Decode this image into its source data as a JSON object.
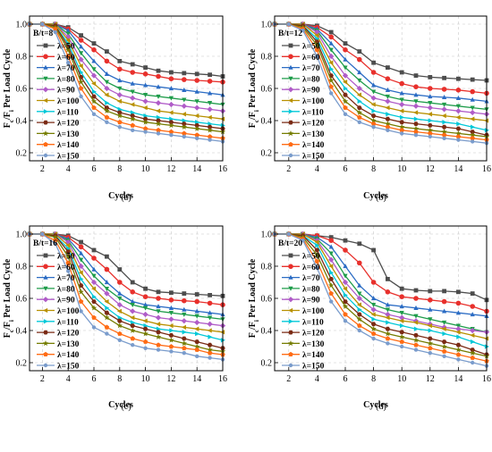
{
  "figure": {
    "series_labels": [
      "λ=50",
      "λ=60",
      "λ=70",
      "λ=80",
      "λ=90",
      "λ=100",
      "λ=110",
      "λ=120",
      "λ=130",
      "λ=140",
      "λ=150"
    ],
    "colors": [
      "#4d4d4d",
      "#e8302c",
      "#2b6cc4",
      "#1e9c4a",
      "#b05cc8",
      "#b89000",
      "#00c8d8",
      "#7a2a14",
      "#747c00",
      "#ff6b14",
      "#7a9ccc"
    ],
    "markers": [
      "square",
      "circle",
      "triangle-up",
      "triangle-down",
      "diamond",
      "triangle-left",
      "triangle-right",
      "hexagon",
      "star",
      "pentagon",
      "circle-small"
    ]
  },
  "chart_data": [
    {
      "type": "line",
      "panel_label": "(a)",
      "box_label": "B/t=8",
      "xlabel": "Cycles",
      "ylabel": "F_c/F_i Per Load Cycle",
      "xlim": [
        1,
        16
      ],
      "ylim": [
        0.15,
        1.05
      ],
      "xticks": [
        2,
        4,
        6,
        8,
        10,
        12,
        14,
        16
      ],
      "yticks": [
        0.2,
        0.4,
        0.6,
        0.8,
        1.0
      ],
      "x": [
        1,
        2,
        3,
        4,
        5,
        6,
        7,
        8,
        9,
        10,
        11,
        12,
        13,
        14,
        15,
        16
      ],
      "series": [
        {
          "name": "λ=50",
          "values": [
            1,
            1,
            1,
            0.98,
            0.93,
            0.88,
            0.83,
            0.77,
            0.75,
            0.73,
            0.71,
            0.7,
            0.695,
            0.69,
            0.685,
            0.675
          ]
        },
        {
          "name": "λ=60",
          "values": [
            1,
            1,
            1,
            0.97,
            0.9,
            0.84,
            0.77,
            0.72,
            0.7,
            0.69,
            0.675,
            0.66,
            0.655,
            0.65,
            0.645,
            0.64
          ]
        },
        {
          "name": "λ=70",
          "values": [
            1,
            1,
            1,
            0.96,
            0.86,
            0.77,
            0.69,
            0.65,
            0.63,
            0.62,
            0.61,
            0.6,
            0.59,
            0.58,
            0.57,
            0.56
          ]
        },
        {
          "name": "λ=80",
          "values": [
            1,
            1,
            1,
            0.94,
            0.82,
            0.72,
            0.64,
            0.6,
            0.58,
            0.56,
            0.55,
            0.54,
            0.53,
            0.52,
            0.51,
            0.5
          ]
        },
        {
          "name": "λ=90",
          "values": [
            1,
            1,
            1,
            0.92,
            0.78,
            0.68,
            0.6,
            0.56,
            0.54,
            0.52,
            0.51,
            0.5,
            0.49,
            0.48,
            0.47,
            0.46
          ]
        },
        {
          "name": "λ=100",
          "values": [
            1,
            1,
            1,
            0.9,
            0.74,
            0.63,
            0.56,
            0.52,
            0.5,
            0.48,
            0.46,
            0.45,
            0.44,
            0.43,
            0.42,
            0.41
          ]
        },
        {
          "name": "λ=110",
          "values": [
            1,
            1,
            0.99,
            0.88,
            0.7,
            0.58,
            0.51,
            0.47,
            0.45,
            0.43,
            0.42,
            0.41,
            0.4,
            0.39,
            0.38,
            0.37
          ]
        },
        {
          "name": "λ=120",
          "values": [
            1,
            1,
            0.99,
            0.86,
            0.67,
            0.55,
            0.48,
            0.45,
            0.43,
            0.41,
            0.4,
            0.39,
            0.38,
            0.37,
            0.36,
            0.35
          ]
        },
        {
          "name": "λ=130",
          "values": [
            1,
            1,
            0.98,
            0.84,
            0.64,
            0.52,
            0.46,
            0.43,
            0.41,
            0.39,
            0.38,
            0.37,
            0.36,
            0.35,
            0.34,
            0.33
          ]
        },
        {
          "name": "λ=140",
          "values": [
            1,
            1,
            0.97,
            0.8,
            0.6,
            0.48,
            0.42,
            0.39,
            0.37,
            0.35,
            0.34,
            0.33,
            0.32,
            0.31,
            0.3,
            0.29
          ]
        },
        {
          "name": "λ=150",
          "values": [
            1,
            1,
            0.95,
            0.76,
            0.55,
            0.44,
            0.39,
            0.36,
            0.34,
            0.33,
            0.32,
            0.31,
            0.3,
            0.29,
            0.28,
            0.27
          ]
        }
      ]
    },
    {
      "type": "line",
      "panel_label": "(b)",
      "box_label": "B/t=12",
      "xlabel": "Cycles",
      "ylabel": "F_c/F_i Per Load Cycle",
      "xlim": [
        1,
        16
      ],
      "ylim": [
        0.15,
        1.05
      ],
      "xticks": [
        2,
        4,
        6,
        8,
        10,
        12,
        14,
        16
      ],
      "yticks": [
        0.2,
        0.4,
        0.6,
        0.8,
        1.0
      ],
      "x": [
        1,
        2,
        3,
        4,
        5,
        6,
        7,
        8,
        9,
        10,
        11,
        12,
        13,
        14,
        15,
        16
      ],
      "series": [
        {
          "name": "λ=50",
          "values": [
            1,
            1,
            1,
            0.99,
            0.95,
            0.88,
            0.83,
            0.76,
            0.73,
            0.7,
            0.68,
            0.67,
            0.665,
            0.66,
            0.655,
            0.65
          ]
        },
        {
          "name": "λ=60",
          "values": [
            1,
            1,
            1,
            0.98,
            0.92,
            0.84,
            0.78,
            0.7,
            0.66,
            0.63,
            0.61,
            0.6,
            0.595,
            0.59,
            0.58,
            0.57
          ]
        },
        {
          "name": "λ=70",
          "values": [
            1,
            1,
            1,
            0.97,
            0.88,
            0.78,
            0.7,
            0.62,
            0.59,
            0.57,
            0.56,
            0.55,
            0.545,
            0.54,
            0.53,
            0.52
          ]
        },
        {
          "name": "λ=80",
          "values": [
            1,
            1,
            1,
            0.96,
            0.84,
            0.73,
            0.65,
            0.58,
            0.55,
            0.53,
            0.52,
            0.51,
            0.5,
            0.49,
            0.48,
            0.47
          ]
        },
        {
          "name": "λ=90",
          "values": [
            1,
            1,
            1,
            0.95,
            0.8,
            0.68,
            0.6,
            0.54,
            0.52,
            0.5,
            0.49,
            0.48,
            0.47,
            0.46,
            0.45,
            0.44
          ]
        },
        {
          "name": "λ=100",
          "values": [
            1,
            1,
            1,
            0.93,
            0.76,
            0.64,
            0.56,
            0.5,
            0.48,
            0.46,
            0.45,
            0.44,
            0.43,
            0.42,
            0.41,
            0.4
          ]
        },
        {
          "name": "λ=110",
          "values": [
            1,
            1,
            0.99,
            0.91,
            0.72,
            0.6,
            0.52,
            0.46,
            0.44,
            0.42,
            0.41,
            0.4,
            0.39,
            0.38,
            0.36,
            0.34
          ]
        },
        {
          "name": "λ=120",
          "values": [
            1,
            1,
            0.99,
            0.89,
            0.68,
            0.56,
            0.48,
            0.43,
            0.41,
            0.39,
            0.38,
            0.37,
            0.36,
            0.35,
            0.33,
            0.31
          ]
        },
        {
          "name": "λ=130",
          "values": [
            1,
            1,
            0.98,
            0.87,
            0.65,
            0.52,
            0.45,
            0.4,
            0.38,
            0.36,
            0.35,
            0.34,
            0.33,
            0.32,
            0.31,
            0.3
          ]
        },
        {
          "name": "λ=140",
          "values": [
            1,
            1,
            0.97,
            0.84,
            0.61,
            0.48,
            0.42,
            0.38,
            0.36,
            0.34,
            0.33,
            0.32,
            0.31,
            0.3,
            0.29,
            0.28
          ]
        },
        {
          "name": "λ=150",
          "values": [
            1,
            1,
            0.96,
            0.8,
            0.57,
            0.44,
            0.39,
            0.36,
            0.34,
            0.32,
            0.31,
            0.3,
            0.29,
            0.28,
            0.27,
            0.26
          ]
        }
      ]
    },
    {
      "type": "line",
      "panel_label": "(c)",
      "box_label": "B/t=16",
      "xlabel": "Cycles",
      "ylabel": "F_c/F_i Per Load Cycle",
      "xlim": [
        1,
        16
      ],
      "ylim": [
        0.15,
        1.05
      ],
      "xticks": [
        2,
        4,
        6,
        8,
        10,
        12,
        14,
        16
      ],
      "yticks": [
        0.2,
        0.4,
        0.6,
        0.8,
        1.0
      ],
      "x": [
        1,
        2,
        3,
        4,
        5,
        6,
        7,
        8,
        9,
        10,
        11,
        12,
        13,
        14,
        15,
        16
      ],
      "series": [
        {
          "name": "λ=50",
          "values": [
            1,
            1,
            1,
            0.99,
            0.95,
            0.9,
            0.86,
            0.78,
            0.7,
            0.66,
            0.64,
            0.635,
            0.63,
            0.625,
            0.62,
            0.615
          ]
        },
        {
          "name": "λ=60",
          "values": [
            1,
            1,
            1,
            0.98,
            0.92,
            0.85,
            0.78,
            0.7,
            0.64,
            0.61,
            0.6,
            0.59,
            0.585,
            0.58,
            0.57,
            0.56
          ]
        },
        {
          "name": "λ=70",
          "values": [
            1,
            1,
            1,
            0.97,
            0.88,
            0.78,
            0.7,
            0.63,
            0.58,
            0.56,
            0.55,
            0.54,
            0.53,
            0.52,
            0.51,
            0.5
          ]
        },
        {
          "name": "λ=80",
          "values": [
            1,
            1,
            1,
            0.96,
            0.84,
            0.74,
            0.66,
            0.6,
            0.56,
            0.54,
            0.52,
            0.51,
            0.5,
            0.49,
            0.48,
            0.47
          ]
        },
        {
          "name": "λ=90",
          "values": [
            1,
            1,
            1,
            0.95,
            0.8,
            0.7,
            0.63,
            0.56,
            0.52,
            0.5,
            0.48,
            0.47,
            0.46,
            0.45,
            0.44,
            0.43
          ]
        },
        {
          "name": "λ=100",
          "values": [
            1,
            1,
            1,
            0.93,
            0.76,
            0.66,
            0.58,
            0.52,
            0.48,
            0.46,
            0.44,
            0.43,
            0.42,
            0.41,
            0.4,
            0.39
          ]
        },
        {
          "name": "λ=110",
          "values": [
            1,
            1,
            0.99,
            0.91,
            0.72,
            0.61,
            0.54,
            0.48,
            0.45,
            0.43,
            0.41,
            0.4,
            0.39,
            0.38,
            0.36,
            0.34
          ]
        },
        {
          "name": "λ=120",
          "values": [
            1,
            1,
            0.99,
            0.89,
            0.68,
            0.58,
            0.51,
            0.46,
            0.43,
            0.41,
            0.39,
            0.37,
            0.35,
            0.33,
            0.31,
            0.29
          ]
        },
        {
          "name": "λ=130",
          "values": [
            1,
            1,
            0.98,
            0.86,
            0.64,
            0.54,
            0.48,
            0.43,
            0.4,
            0.38,
            0.36,
            0.34,
            0.32,
            0.3,
            0.28,
            0.27
          ]
        },
        {
          "name": "λ=140",
          "values": [
            1,
            1,
            0.96,
            0.82,
            0.58,
            0.48,
            0.42,
            0.38,
            0.35,
            0.33,
            0.31,
            0.3,
            0.29,
            0.28,
            0.26,
            0.25
          ]
        },
        {
          "name": "λ=150",
          "values": [
            1,
            1,
            0.94,
            0.77,
            0.52,
            0.42,
            0.38,
            0.34,
            0.31,
            0.29,
            0.28,
            0.27,
            0.26,
            0.24,
            0.23,
            0.22
          ]
        }
      ]
    },
    {
      "type": "line",
      "panel_label": "(d)",
      "box_label": "B/t=20",
      "xlabel": "Cycles",
      "ylabel": "F_c/F_i Per Load Cycle",
      "xlim": [
        1,
        16
      ],
      "ylim": [
        0.15,
        1.05
      ],
      "xticks": [
        2,
        4,
        6,
        8,
        10,
        12,
        14,
        16
      ],
      "yticks": [
        0.2,
        0.4,
        0.6,
        0.8,
        1.0
      ],
      "x": [
        1,
        2,
        3,
        4,
        5,
        6,
        7,
        8,
        9,
        10,
        11,
        12,
        13,
        14,
        15,
        16
      ],
      "series": [
        {
          "name": "λ=50",
          "values": [
            1,
            1,
            1,
            0.99,
            0.98,
            0.96,
            0.94,
            0.9,
            0.72,
            0.66,
            0.65,
            0.645,
            0.645,
            0.64,
            0.63,
            0.59
          ]
        },
        {
          "name": "λ=60",
          "values": [
            1,
            1,
            1,
            0.99,
            0.96,
            0.9,
            0.82,
            0.7,
            0.64,
            0.61,
            0.6,
            0.59,
            0.58,
            0.57,
            0.55,
            0.52
          ]
        },
        {
          "name": "λ=70",
          "values": [
            1,
            1,
            1,
            0.98,
            0.92,
            0.8,
            0.68,
            0.6,
            0.56,
            0.55,
            0.54,
            0.53,
            0.52,
            0.51,
            0.5,
            0.49
          ]
        },
        {
          "name": "λ=80",
          "values": [
            1,
            1,
            1,
            0.97,
            0.88,
            0.74,
            0.63,
            0.56,
            0.53,
            0.51,
            0.49,
            0.47,
            0.45,
            0.43,
            0.41,
            0.39
          ]
        },
        {
          "name": "λ=90",
          "values": [
            1,
            1,
            1,
            0.96,
            0.84,
            0.7,
            0.6,
            0.53,
            0.5,
            0.48,
            0.46,
            0.44,
            0.42,
            0.41,
            0.4,
            0.39
          ]
        },
        {
          "name": "λ=100",
          "values": [
            1,
            1,
            1,
            0.95,
            0.8,
            0.66,
            0.56,
            0.5,
            0.48,
            0.46,
            0.45,
            0.43,
            0.41,
            0.39,
            0.37,
            0.35
          ]
        },
        {
          "name": "λ=110",
          "values": [
            1,
            1,
            0.99,
            0.93,
            0.76,
            0.62,
            0.53,
            0.47,
            0.45,
            0.43,
            0.41,
            0.4,
            0.38,
            0.36,
            0.33,
            0.3
          ]
        },
        {
          "name": "λ=120",
          "values": [
            1,
            1,
            0.99,
            0.9,
            0.72,
            0.58,
            0.5,
            0.44,
            0.41,
            0.39,
            0.37,
            0.35,
            0.33,
            0.31,
            0.28,
            0.25
          ]
        },
        {
          "name": "λ=130",
          "values": [
            1,
            1,
            0.98,
            0.87,
            0.68,
            0.55,
            0.47,
            0.41,
            0.38,
            0.36,
            0.34,
            0.32,
            0.3,
            0.28,
            0.26,
            0.24
          ]
        },
        {
          "name": "λ=140",
          "values": [
            1,
            1,
            0.97,
            0.83,
            0.63,
            0.5,
            0.43,
            0.38,
            0.35,
            0.33,
            0.31,
            0.29,
            0.27,
            0.25,
            0.23,
            0.21
          ]
        },
        {
          "name": "λ=150",
          "values": [
            1,
            1,
            0.96,
            0.79,
            0.58,
            0.46,
            0.4,
            0.35,
            0.32,
            0.3,
            0.28,
            0.26,
            0.24,
            0.22,
            0.2,
            0.18
          ]
        }
      ]
    }
  ]
}
